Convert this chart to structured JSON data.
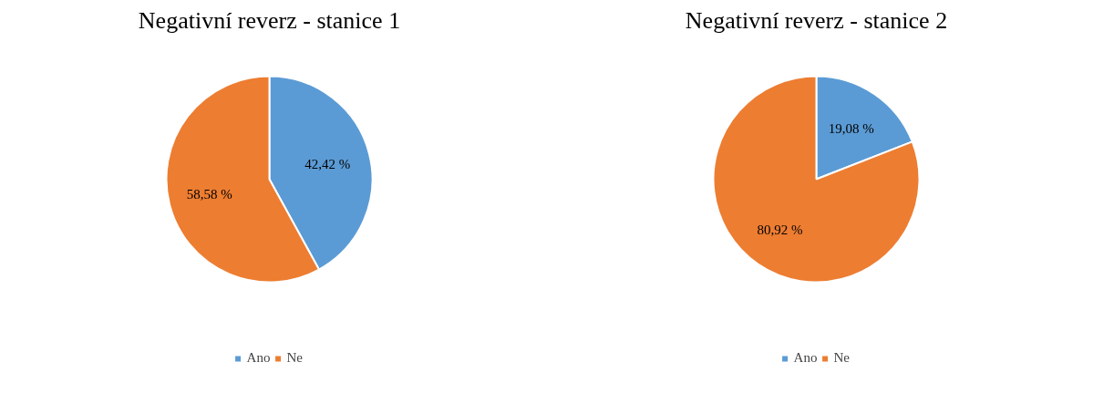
{
  "chart_data": [
    {
      "type": "pie",
      "title": "Negativní reverz - stanice 1",
      "categories": [
        "Ano",
        "Ne"
      ],
      "values": [
        42.42,
        58.58
      ],
      "colors": [
        "#5b9bd5",
        "#ed7d31"
      ],
      "value_labels": [
        "42,42  %",
        "58,58 %"
      ],
      "legend": "bottom"
    },
    {
      "type": "pie",
      "title": "Negativní reverz - stanice 2",
      "categories": [
        "Ano",
        "Ne"
      ],
      "values": [
        19.08,
        80.92
      ],
      "colors": [
        "#5b9bd5",
        "#ed7d31"
      ],
      "value_labels": [
        "19,08 %",
        "80,92  %"
      ],
      "legend": "bottom"
    }
  ]
}
